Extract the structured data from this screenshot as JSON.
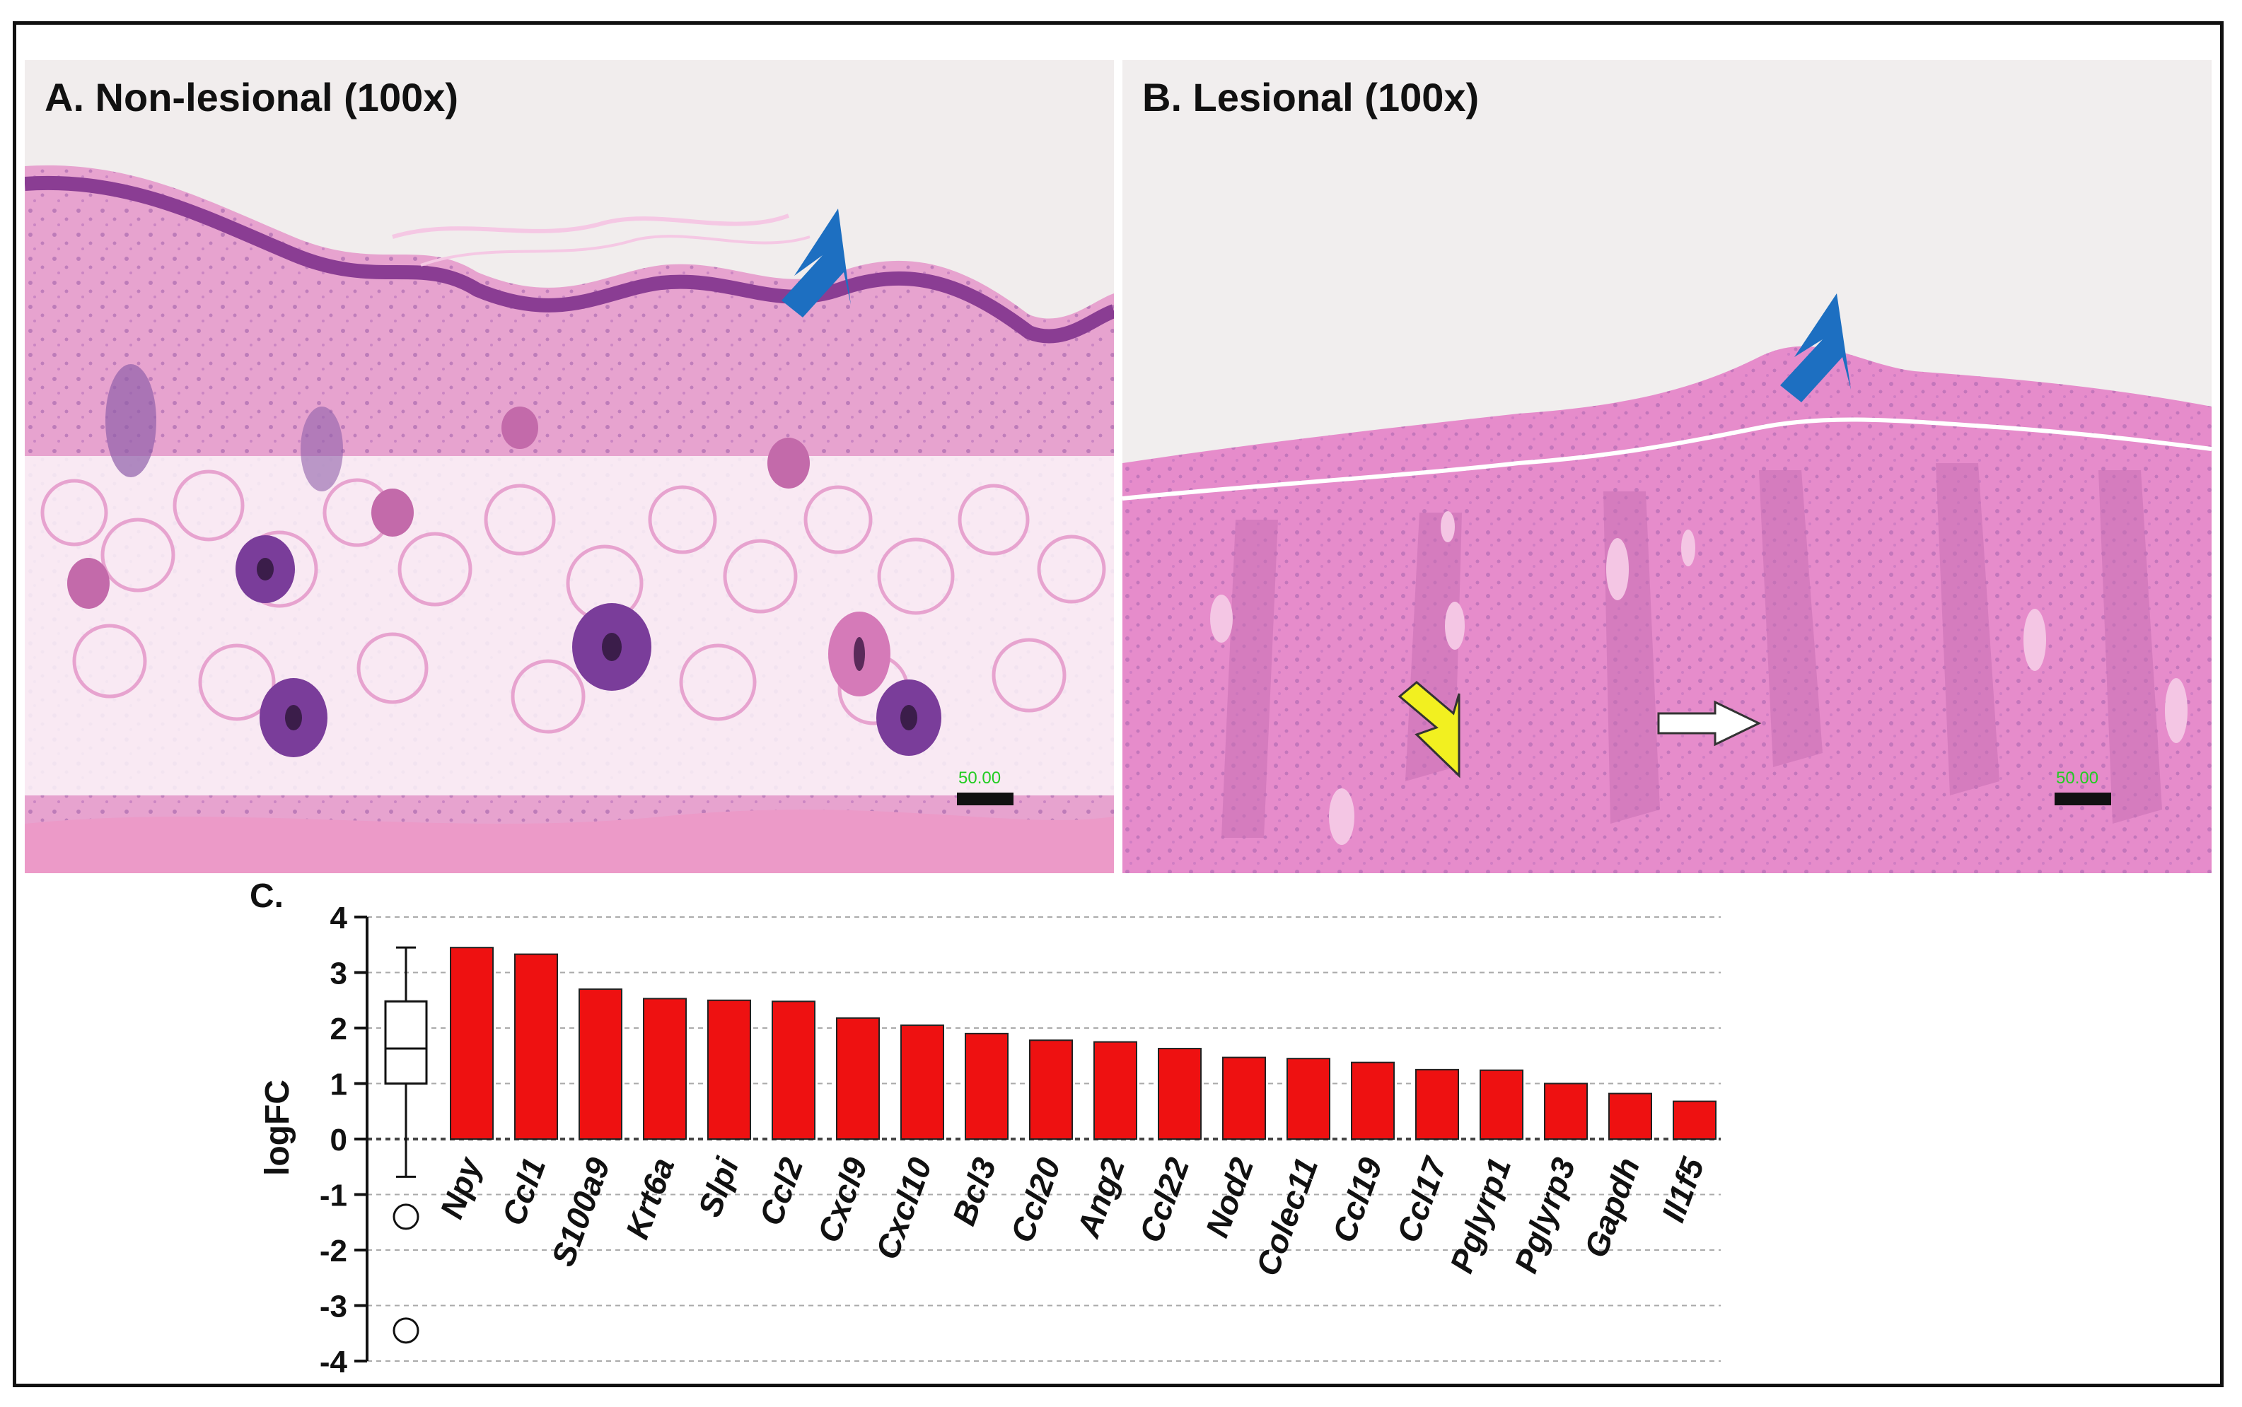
{
  "panels": {
    "a": {
      "title": "A.  Non-lesional (100x)",
      "scale_bar": "50.00"
    },
    "b": {
      "title": "B. Lesional (100x)",
      "scale_bar": "50.00"
    }
  },
  "colors": {
    "bar": "#ee1111",
    "stain_pink": "#e99acb",
    "stain_purple": "#8a4a9a",
    "arrow_blue": "#1d6fc1",
    "arrow_yellow": "#f2f020",
    "scale_text": "#22cc22"
  },
  "chart_data": {
    "type": "bar",
    "panel_label": "C.",
    "ylabel": "logFC",
    "ylim": [
      -4,
      4
    ],
    "yticks": [
      "4",
      "3",
      "2",
      "1",
      "0",
      "-1",
      "-2",
      "-3",
      "-4"
    ],
    "grid": true,
    "categories": [
      "Npy",
      "Ccl1",
      "S100a9",
      "Krt6a",
      "Slpi",
      "Ccl2",
      "Cxcl9",
      "Cxcl10",
      "Bcl3",
      "Ccl20",
      "Ang2",
      "Ccl22",
      "Nod2",
      "Colec11",
      "Ccl19",
      "Ccl17",
      "Pglyrp1",
      "Pglyrp3",
      "Gapdh",
      "Il1f5"
    ],
    "values": [
      3.45,
      3.33,
      2.7,
      2.53,
      2.5,
      2.48,
      2.18,
      2.05,
      1.9,
      1.78,
      1.75,
      1.63,
      1.47,
      1.45,
      1.38,
      1.25,
      1.24,
      1.0,
      0.82,
      0.68
    ],
    "boxplot": {
      "whisker_low": -0.68,
      "q1": 1.0,
      "median": 1.63,
      "q3": 2.48,
      "whisker_high": 3.45,
      "outliers": [
        -1.4,
        -3.45
      ]
    }
  }
}
